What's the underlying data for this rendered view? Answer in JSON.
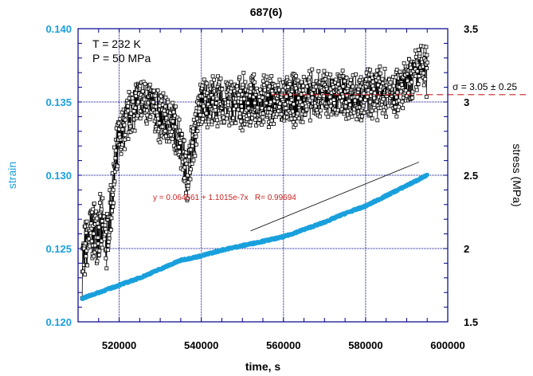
{
  "chart_data": {
    "type": "scatter",
    "title": "687(6)",
    "xlabel": "time, s",
    "ylabel_left": "strain",
    "ylabel_right": "stress (MPa)",
    "xlim": [
      510000,
      600000
    ],
    "ylim_left": [
      0.12,
      0.14
    ],
    "ylim_right": [
      1.5,
      3.5
    ],
    "x_ticks": [
      "520000",
      "540000",
      "560000",
      "580000",
      "600000"
    ],
    "x_tick_values": [
      520000,
      540000,
      560000,
      580000,
      600000
    ],
    "left_ticks": [
      "0.120",
      "0.125",
      "0.130",
      "0.135",
      "0.140"
    ],
    "left_tick_values": [
      0.12,
      0.125,
      0.13,
      0.135,
      0.14
    ],
    "right_ticks": [
      "1.5",
      "2",
      "2.5",
      "3",
      "3.5"
    ],
    "right_tick_values": [
      1.5,
      2.0,
      2.5,
      3.0,
      3.5
    ],
    "grid": true,
    "annotations": {
      "temperature": "T = 232 K",
      "pressure": "P = 50 MPa",
      "sigma": "σ = 3.05 ± 0.25",
      "fit": "y = 0.064561 + 1.1015e-7x   R= 0.99694"
    },
    "sigma_value": 3.05,
    "fit_line": {
      "x": [
        552000,
        593000
      ],
      "y": [
        0.1262,
        0.1309
      ]
    },
    "series": [
      {
        "name": "strain",
        "axis": "left",
        "color": "#1aa0dc",
        "x": [
          511000,
          515000,
          520000,
          525000,
          530000,
          535000,
          540000,
          545000,
          550000,
          555000,
          560000,
          565000,
          570000,
          575000,
          580000,
          585000,
          590000,
          595000
        ],
        "y": [
          0.1216,
          0.122,
          0.1225,
          0.123,
          0.1236,
          0.1242,
          0.1245,
          0.1249,
          0.1252,
          0.1255,
          0.1258,
          0.1263,
          0.1268,
          0.1274,
          0.1279,
          0.1286,
          0.1293,
          0.13
        ]
      },
      {
        "name": "stress",
        "axis": "right",
        "color": "#000000",
        "x": [
          511000,
          513000,
          515000,
          517000,
          519000,
          520000,
          522000,
          524000,
          527000,
          530000,
          533000,
          535000,
          536500,
          538000,
          540000,
          550000,
          560000,
          570000,
          580000,
          590000,
          594000,
          595000
        ],
        "y": [
          1.9,
          2.1,
          2.15,
          2.05,
          2.53,
          2.72,
          2.88,
          3.0,
          3.0,
          2.9,
          2.85,
          2.74,
          2.47,
          2.74,
          3.0,
          3.0,
          3.0,
          3.05,
          3.05,
          3.1,
          3.25,
          3.2
        ]
      }
    ],
    "colors": {
      "axis": "#00008b",
      "grid": "#00008b",
      "sigma_line": "#cc2222",
      "fit_text": "#cc2222"
    }
  }
}
